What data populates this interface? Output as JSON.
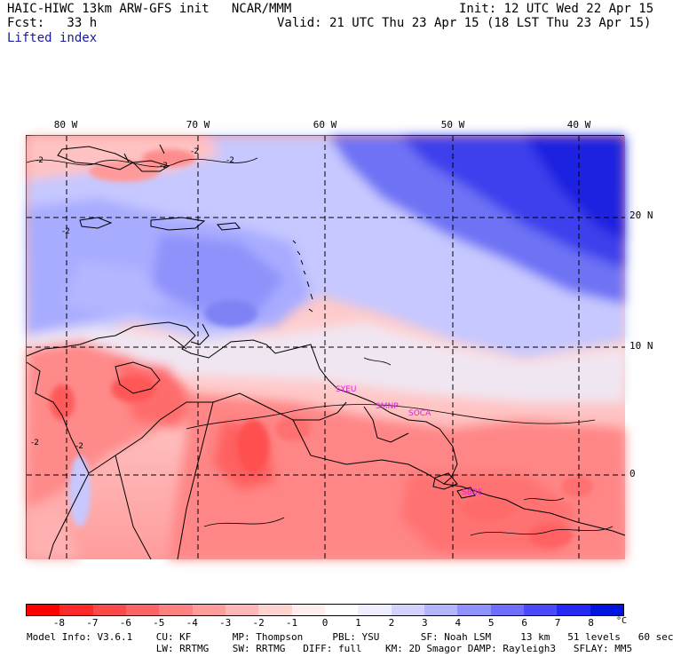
{
  "header": {
    "title": "HAIC-HIWC 13km ARW-GFS init   NCAR/MMM",
    "init": "Init: 12 UTC Wed 22 Apr 15",
    "fcst": "Fcst:   33 h",
    "valid": "Valid: 21 UTC Thu 23 Apr 15 (18 LST Thu 23 Apr 15)",
    "field": "Lifted index"
  },
  "map": {
    "lon_labels": [
      "80 W",
      "70 W",
      "60 W",
      "50 W",
      "40 W"
    ],
    "lat_labels": [
      "20 N",
      "10 N",
      "0"
    ],
    "stations": [
      {
        "id": "SYEU"
      },
      {
        "id": "SMNP"
      },
      {
        "id": "SOCA"
      },
      {
        "id": "SBBE"
      }
    ],
    "contour_labels": [
      "-2",
      "-2",
      "-2",
      "-2",
      "-2",
      "-2",
      "-2"
    ],
    "colors": {
      "positive_max": "#0014e0",
      "negative_max": "#ff0000",
      "zero": "#ffffff"
    }
  },
  "colorbar": {
    "labels": [
      "-8",
      "-7",
      "-6",
      "-5",
      "-4",
      "-3",
      "-2",
      "-1",
      "0",
      "1",
      "2",
      "3",
      "4",
      "5",
      "6",
      "7",
      "8"
    ],
    "unit": "°C",
    "colors": [
      "#ff0000",
      "#ff2a2a",
      "#ff4848",
      "#ff6464",
      "#ff8080",
      "#ff9c9c",
      "#ffb8b8",
      "#ffd2d2",
      "#ffeeee",
      "#ffffff",
      "#eeeeff",
      "#d2d2ff",
      "#b4b4ff",
      "#9090ff",
      "#6e6eff",
      "#4a4aff",
      "#2828f4",
      "#0014e0"
    ]
  },
  "model_info": {
    "line1": "Model Info: V3.6.1    CU: KF       MP: Thompson     PBL: YSU       SF: Noah LSM     13 km   51 levels   60 sec",
    "line2": "                      LW: RRTMG    SW: RRTMG   DIFF: full    KM: 2D Smagor DAMP: Rayleigh3   SFLAY: MM5"
  }
}
